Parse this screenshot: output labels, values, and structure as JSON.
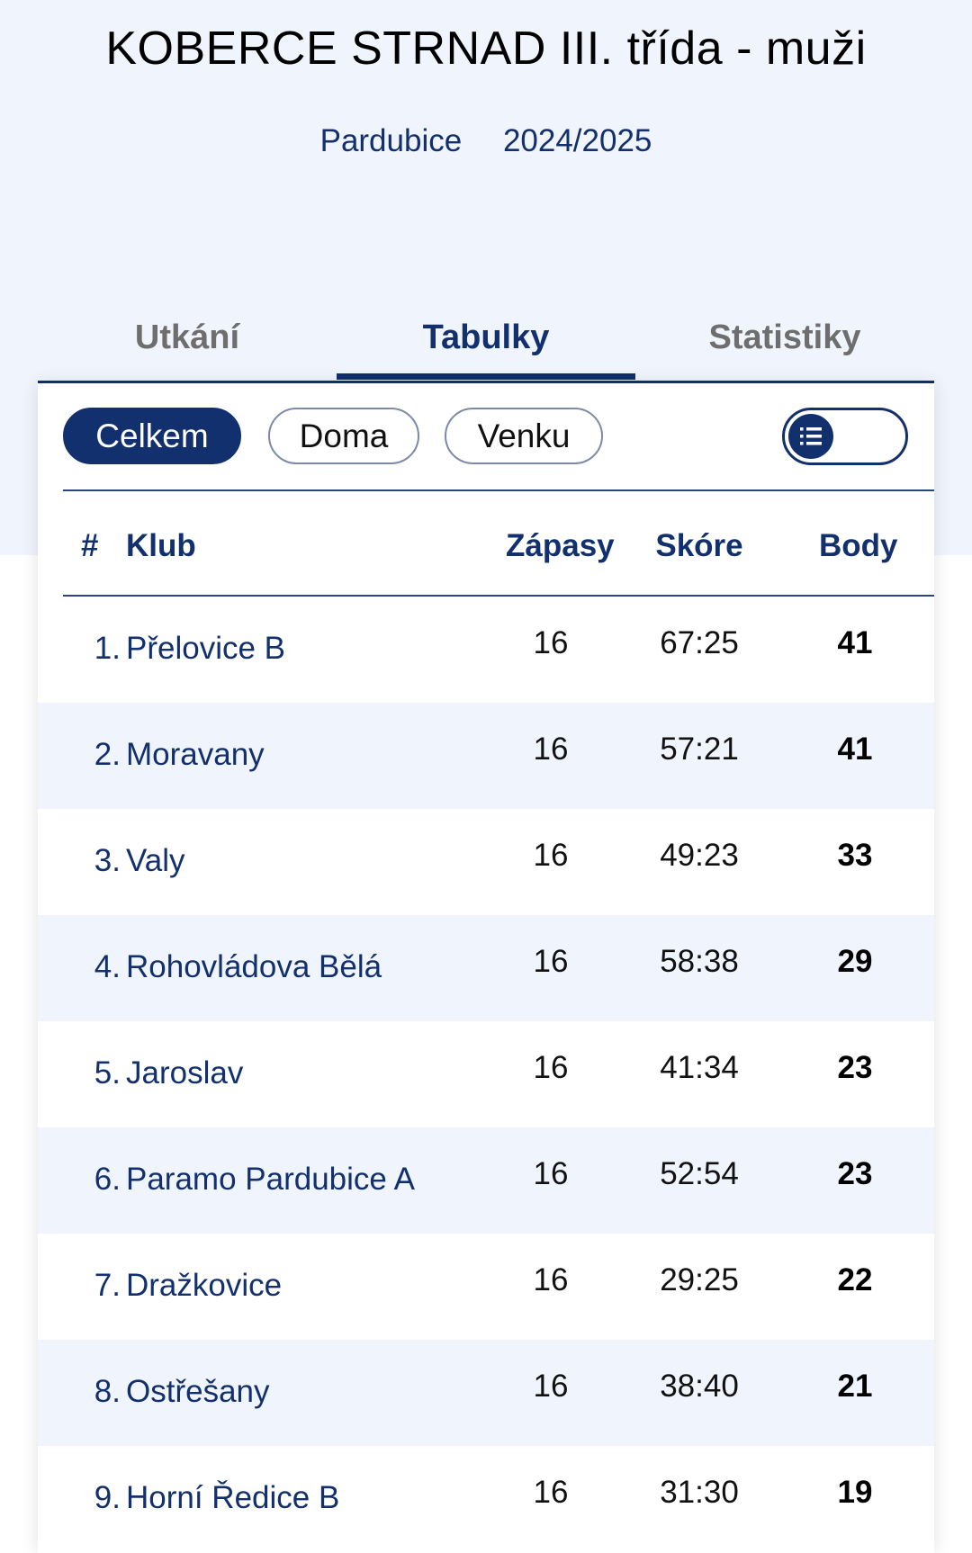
{
  "header": {
    "title": "KOBERCE STRNAD III. třída - muži",
    "region": "Pardubice",
    "season": "2024/2025"
  },
  "tabs": [
    {
      "label": "Utkání",
      "active": false
    },
    {
      "label": "Tabulky",
      "active": true
    },
    {
      "label": "Statistiky",
      "active": false
    }
  ],
  "filters": [
    {
      "label": "Celkem",
      "active": true
    },
    {
      "label": "Doma",
      "active": false
    },
    {
      "label": "Venku",
      "active": false
    }
  ],
  "view_toggle": {
    "icon": "list-icon"
  },
  "table": {
    "headers": {
      "rank": "#",
      "club": "Klub",
      "matches": "Zápasy",
      "score": "Skóre",
      "points": "Body"
    },
    "rows": [
      {
        "rank": "1.",
        "club": "Přelovice B",
        "matches": "16",
        "score": "67:25",
        "points": "41"
      },
      {
        "rank": "2.",
        "club": "Moravany",
        "matches": "16",
        "score": "57:21",
        "points": "41"
      },
      {
        "rank": "3.",
        "club": "Valy",
        "matches": "16",
        "score": "49:23",
        "points": "33"
      },
      {
        "rank": "4.",
        "club": "Rohovládova Bělá",
        "matches": "16",
        "score": "58:38",
        "points": "29"
      },
      {
        "rank": "5.",
        "club": "Jaroslav",
        "matches": "16",
        "score": "41:34",
        "points": "23"
      },
      {
        "rank": "6.",
        "club": "Paramo Pardubice A",
        "matches": "16",
        "score": "52:54",
        "points": "23"
      },
      {
        "rank": "7.",
        "club": "Dražkovice",
        "matches": "16",
        "score": "29:25",
        "points": "22"
      },
      {
        "rank": "8.",
        "club": "Ostřešany",
        "matches": "16",
        "score": "38:40",
        "points": "21"
      },
      {
        "rank": "9.",
        "club": "Horní Ředice B",
        "matches": "16",
        "score": "31:30",
        "points": "19"
      }
    ]
  },
  "colors": {
    "brand": "#13306e",
    "hero_bg": "#f0f4fd",
    "row_alt": "#f0f4fd"
  }
}
